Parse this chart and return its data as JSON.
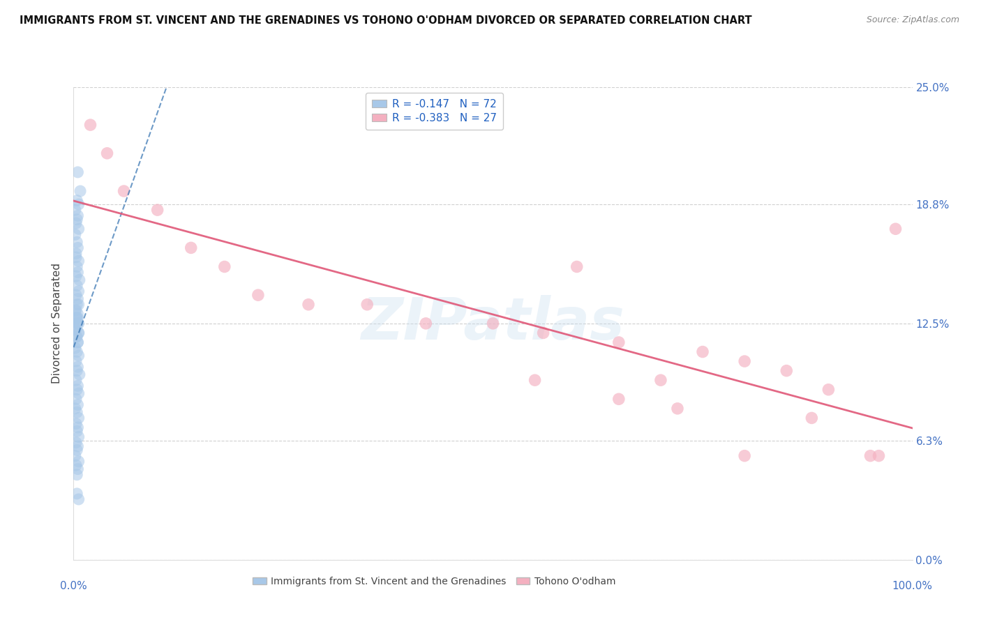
{
  "title": "IMMIGRANTS FROM ST. VINCENT AND THE GRENADINES VS TOHONO O'ODHAM DIVORCED OR SEPARATED CORRELATION CHART",
  "source": "Source: ZipAtlas.com",
  "ylabel": "Divorced or Separated",
  "ytick_values": [
    0.0,
    6.3,
    12.5,
    18.8,
    25.0
  ],
  "ytick_labels": [
    "0.0%",
    "6.3%",
    "12.5%",
    "18.8%",
    "25.0%"
  ],
  "xlim": [
    0.0,
    100.0
  ],
  "ylim": [
    0.0,
    25.0
  ],
  "legend_blue_R": "-0.147",
  "legend_blue_N": "72",
  "legend_pink_R": "-0.383",
  "legend_pink_N": "27",
  "blue_color": "#a8c8e8",
  "pink_color": "#f4b0c0",
  "blue_line_color": "#3070b0",
  "pink_line_color": "#e05878",
  "watermark_text": "ZIPatlas",
  "blue_label": "Immigrants from St. Vincent and the Grenadines",
  "pink_label": "Tohono O'odham",
  "blue_scatter_x": [
    0.5,
    0.3,
    0.8,
    0.4,
    0.6,
    0.2,
    0.5,
    0.4,
    0.3,
    0.6,
    0.2,
    0.4,
    0.5,
    0.3,
    0.6,
    0.4,
    0.5,
    0.3,
    0.7,
    0.4,
    0.6,
    0.3,
    0.5,
    0.4,
    0.2,
    0.5,
    0.3,
    0.6,
    0.4,
    0.5,
    0.3,
    0.6,
    0.4,
    0.5,
    0.2,
    0.4,
    0.6,
    0.3,
    0.5,
    0.4,
    0.7,
    0.3,
    0.5,
    0.4,
    0.6,
    0.3,
    0.5,
    0.2,
    0.4,
    0.6,
    0.3,
    0.5,
    0.4,
    0.6,
    0.3,
    0.5,
    0.4,
    0.2,
    0.6,
    0.3,
    0.5,
    0.4,
    0.6,
    0.3,
    0.5,
    0.4,
    0.2,
    0.6,
    0.3,
    0.5,
    0.4,
    0.6
  ],
  "blue_scatter_y": [
    20.5,
    16.0,
    19.5,
    19.0,
    18.8,
    18.5,
    18.2,
    18.0,
    17.8,
    17.5,
    17.2,
    16.8,
    16.5,
    16.2,
    15.8,
    15.5,
    15.2,
    15.0,
    14.8,
    14.5,
    14.2,
    14.0,
    13.8,
    13.5,
    13.2,
    13.0,
    12.8,
    12.5,
    12.8,
    12.5,
    12.2,
    12.0,
    11.8,
    11.5,
    11.2,
    11.0,
    10.8,
    10.5,
    10.2,
    10.0,
    9.8,
    9.5,
    9.2,
    9.0,
    8.8,
    8.5,
    8.2,
    8.0,
    7.8,
    7.5,
    7.2,
    7.0,
    6.8,
    6.5,
    6.2,
    6.0,
    5.8,
    5.5,
    5.2,
    5.0,
    4.8,
    4.5,
    13.5,
    13.2,
    12.8,
    12.5,
    12.2,
    12.0,
    11.8,
    11.5,
    3.5,
    3.2
  ],
  "pink_scatter_x": [
    2.0,
    4.0,
    6.0,
    10.0,
    14.0,
    18.0,
    22.0,
    28.0,
    35.0,
    42.0,
    50.0,
    56.0,
    60.0,
    65.0,
    70.0,
    75.0,
    80.0,
    85.0,
    90.0,
    95.0,
    98.0,
    55.0,
    65.0,
    72.0,
    80.0,
    88.0,
    96.0
  ],
  "pink_scatter_y": [
    23.0,
    21.5,
    19.5,
    18.5,
    16.5,
    15.5,
    14.0,
    13.5,
    13.5,
    12.5,
    12.5,
    12.0,
    15.5,
    11.5,
    9.5,
    11.0,
    10.5,
    10.0,
    9.0,
    5.5,
    17.5,
    9.5,
    8.5,
    8.0,
    5.5,
    7.5,
    5.5
  ]
}
